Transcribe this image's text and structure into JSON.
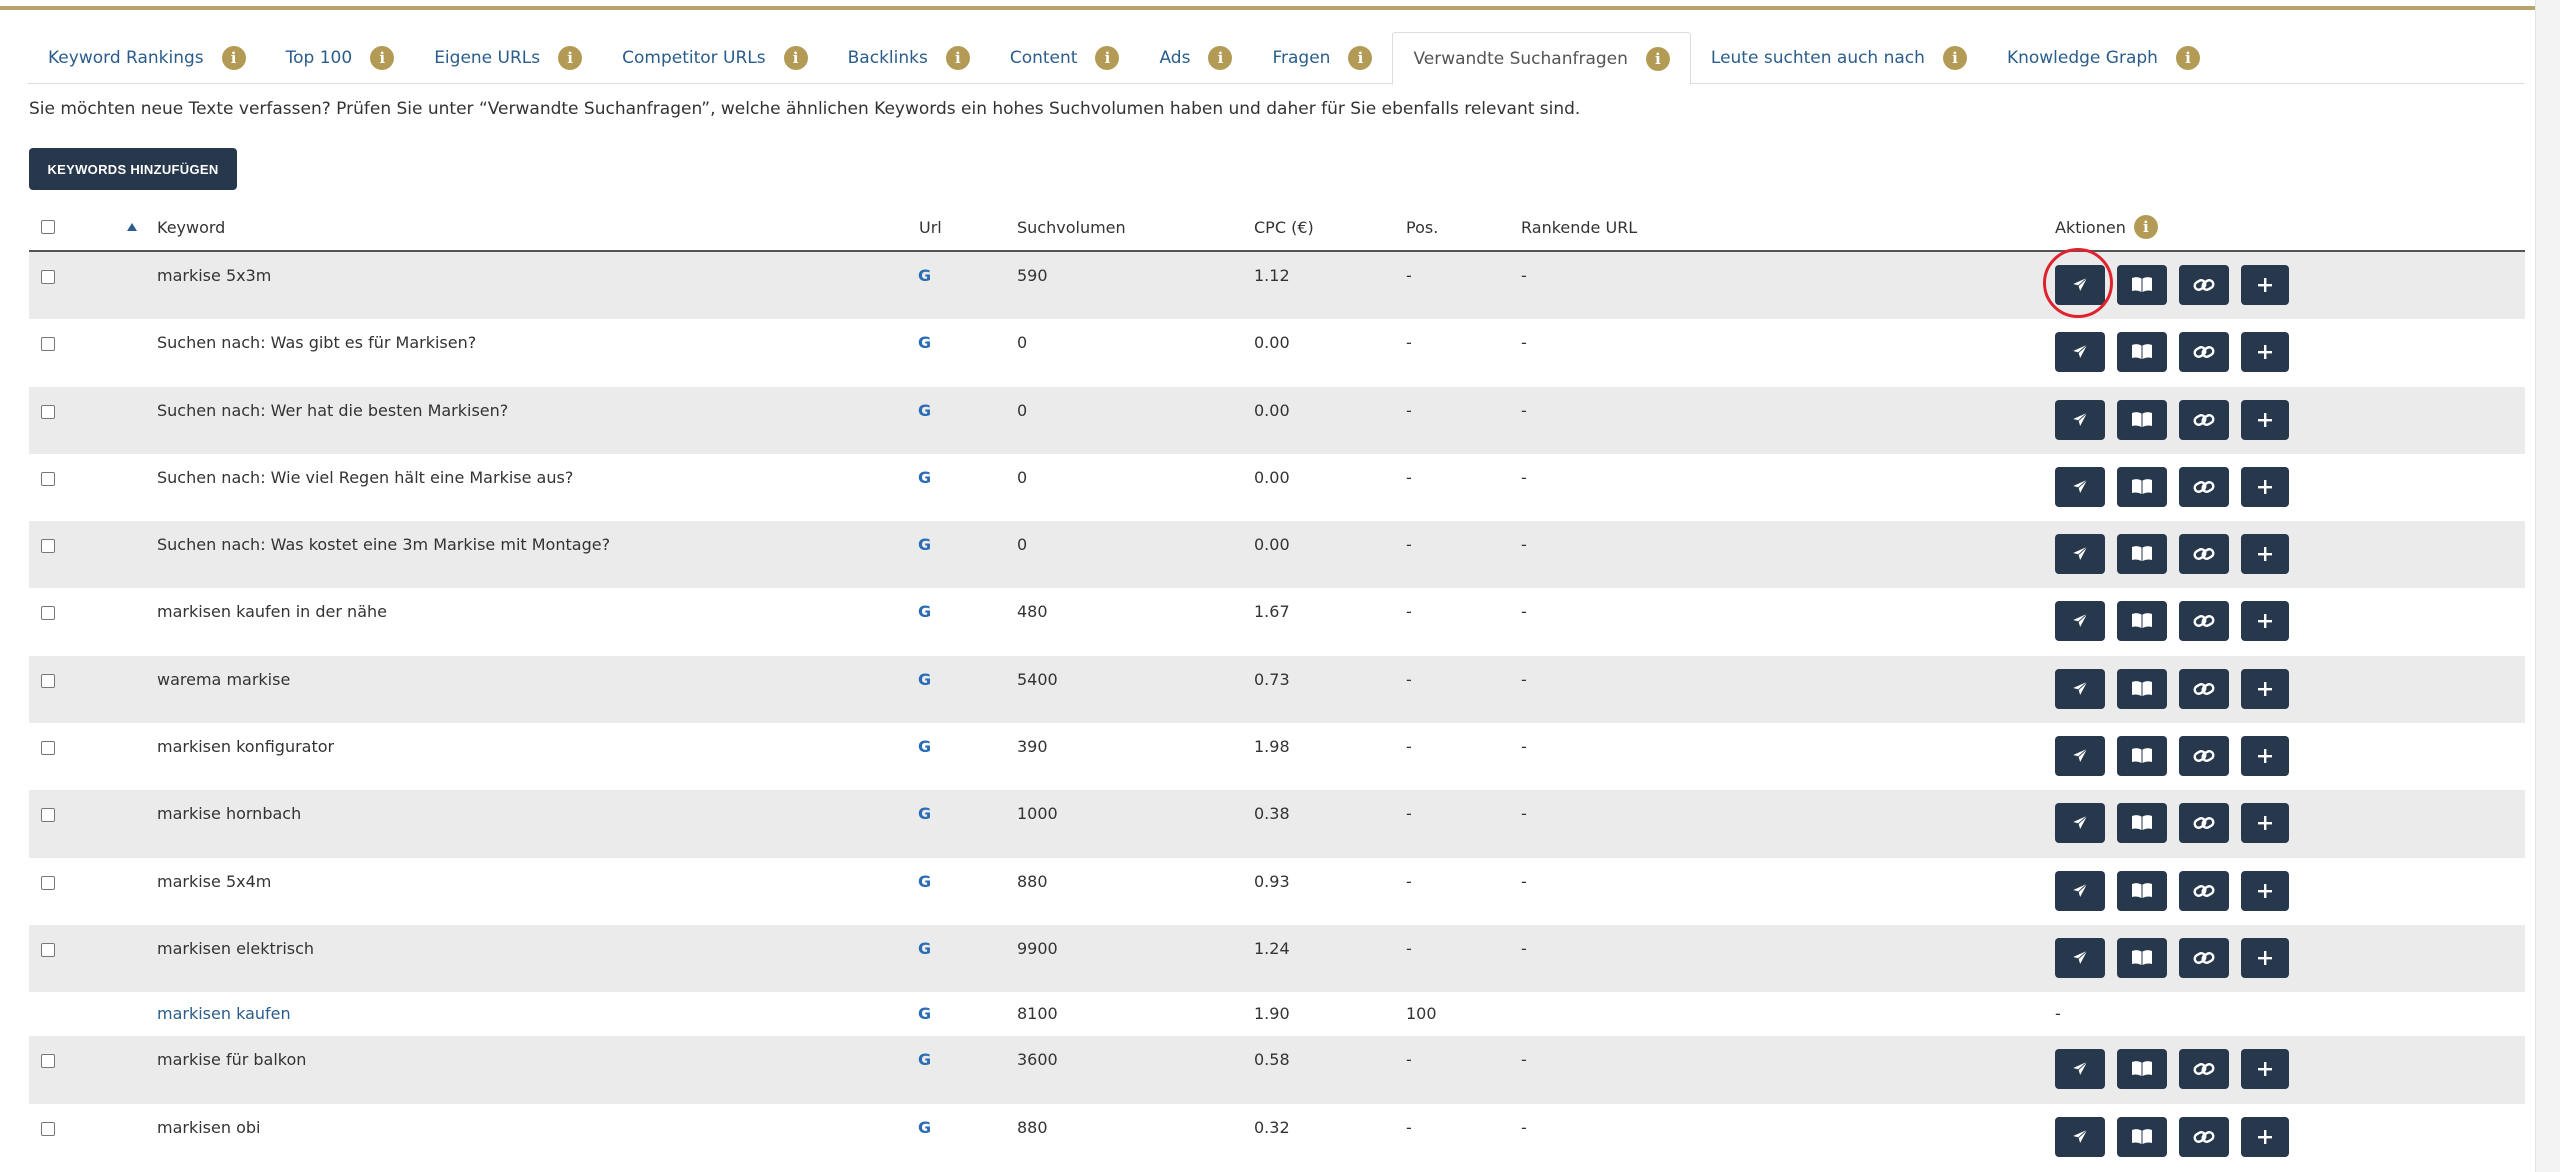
{
  "tabs": [
    {
      "label": "Keyword Rankings",
      "active": false
    },
    {
      "label": "Top 100",
      "active": false
    },
    {
      "label": "Eigene URLs",
      "active": false
    },
    {
      "label": "Competitor URLs",
      "active": false
    },
    {
      "label": "Backlinks",
      "active": false
    },
    {
      "label": "Content",
      "active": false
    },
    {
      "label": "Ads",
      "active": false
    },
    {
      "label": "Fragen",
      "active": false
    },
    {
      "label": "Verwandte Suchanfragen",
      "active": true
    },
    {
      "label": "Leute suchten auch nach",
      "active": false
    },
    {
      "label": "Knowledge Graph",
      "active": false
    }
  ],
  "info_icon_glyph": "i",
  "hint": "Sie möchten neue Texte verfassen? Prüfen Sie unter “Verwandte Suchanfragen”, welche ähnlichen Keywords ein hohes Suchvolumen haben und daher für Sie ebenfalls relevant sind.",
  "add_button": "KEYWORDS HINZUFÜGEN",
  "columns": {
    "keyword": "Keyword",
    "url": "Url",
    "volume": "Suchvolumen",
    "cpc": "CPC (€)",
    "pos": "Pos.",
    "ranking_url": "Rankende URL",
    "actions": "Aktionen"
  },
  "google_glyph": "G",
  "rows": [
    {
      "keyword": "markise 5x3m",
      "volume": "590",
      "cpc": "1.12",
      "pos": "-",
      "ranking_url": "-"
    },
    {
      "keyword": "Suchen nach: Was gibt es für Markisen?",
      "volume": "0",
      "cpc": "0.00",
      "pos": "-",
      "ranking_url": "-"
    },
    {
      "keyword": "Suchen nach: Wer hat die besten Markisen?",
      "volume": "0",
      "cpc": "0.00",
      "pos": "-",
      "ranking_url": "-"
    },
    {
      "keyword": "Suchen nach: Wie viel Regen hält eine Markise aus?",
      "volume": "0",
      "cpc": "0.00",
      "pos": "-",
      "ranking_url": "-"
    },
    {
      "keyword": "Suchen nach: Was kostet eine 3m Markise mit Montage?",
      "volume": "0",
      "cpc": "0.00",
      "pos": "-",
      "ranking_url": "-"
    },
    {
      "keyword": "markisen kaufen in der nähe",
      "volume": "480",
      "cpc": "1.67",
      "pos": "-",
      "ranking_url": "-"
    },
    {
      "keyword": "warema markise",
      "volume": "5400",
      "cpc": "0.73",
      "pos": "-",
      "ranking_url": "-"
    },
    {
      "keyword": "markisen konfigurator",
      "volume": "390",
      "cpc": "1.98",
      "pos": "-",
      "ranking_url": "-"
    },
    {
      "keyword": "markise hornbach",
      "volume": "1000",
      "cpc": "0.38",
      "pos": "-",
      "ranking_url": "-"
    },
    {
      "keyword": "markise 5x4m",
      "volume": "880",
      "cpc": "0.93",
      "pos": "-",
      "ranking_url": "-"
    },
    {
      "keyword": "markisen elektrisch",
      "volume": "9900",
      "cpc": "1.24",
      "pos": "-",
      "ranking_url": "-"
    },
    {
      "keyword": "markisen kaufen",
      "volume": "8100",
      "cpc": "1.90",
      "pos": "100",
      "ranking_url": "",
      "actions_text": "-",
      "is_link": true
    },
    {
      "keyword": "markise für balkon",
      "volume": "3600",
      "cpc": "0.58",
      "pos": "-",
      "ranking_url": "-"
    },
    {
      "keyword": "markisen obi",
      "volume": "880",
      "cpc": "0.32",
      "pos": "-",
      "ranking_url": "-"
    }
  ],
  "action_icons": [
    "paper-plane-icon",
    "book-icon",
    "link-icon",
    "plus-icon"
  ],
  "colors": {
    "accent_gold": "#b39b55",
    "dark_button": "#27384d",
    "link_blue": "#2a5d8c",
    "highlight_red": "#e0222e",
    "row_stripe": "#ebebeb"
  }
}
